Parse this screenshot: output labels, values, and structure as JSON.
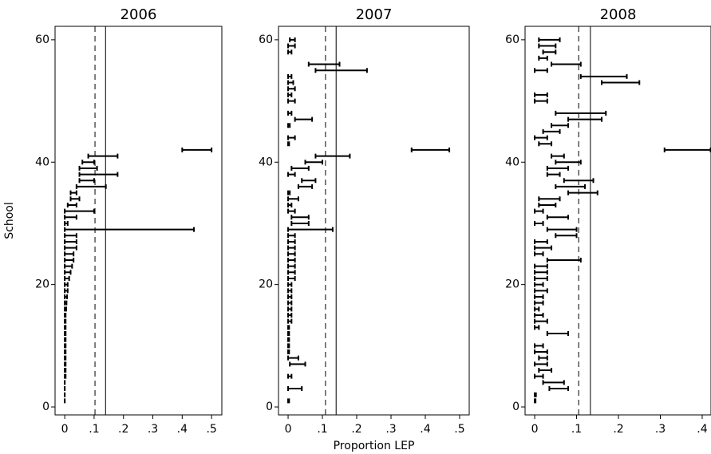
{
  "chart_data": [
    {
      "type": "rcap",
      "title": "2006",
      "y_label": "School",
      "y": [
        1,
        2,
        3,
        4,
        5,
        6,
        7,
        8,
        9,
        10,
        11,
        12,
        13,
        14,
        15,
        16,
        17,
        18,
        19,
        20,
        21,
        22,
        23,
        24,
        25,
        26,
        27,
        28,
        29,
        30,
        31,
        32,
        33,
        34,
        35,
        36,
        37,
        38,
        39,
        40,
        41,
        42,
        43,
        44,
        45,
        46,
        47,
        48,
        49,
        50,
        51,
        52,
        53,
        54,
        55,
        56,
        57,
        58,
        59,
        60
      ],
      "low": [
        0,
        0,
        0,
        0,
        0,
        0,
        0,
        0,
        0,
        0,
        0,
        0,
        0,
        0,
        0,
        0,
        0,
        0,
        0,
        0,
        0,
        0,
        0,
        0,
        0,
        0,
        0,
        0,
        0,
        0,
        0,
        0,
        0.01,
        0.02,
        0.02,
        0.04,
        0.05,
        0.05,
        0.05,
        0.06,
        0.08,
        0.4,
        null,
        null,
        null,
        null,
        null,
        null,
        null,
        null,
        null,
        null,
        null,
        null,
        null,
        null,
        null,
        null,
        null,
        null
      ],
      "high": [
        0,
        0,
        0,
        0,
        0.003,
        0.003,
        0.003,
        0.003,
        0.003,
        0.003,
        0.003,
        0.003,
        0.003,
        0.003,
        0.003,
        0.005,
        0.006,
        0.008,
        0.01,
        0.01,
        0.015,
        0.02,
        0.025,
        0.03,
        0.03,
        0.04,
        0.04,
        0.04,
        0.44,
        0.01,
        0.04,
        0.1,
        0.04,
        0.05,
        0.04,
        0.14,
        0.1,
        0.18,
        0.11,
        0.1,
        0.18,
        0.5,
        null,
        null,
        null,
        null,
        null,
        null,
        null,
        null,
        null,
        null,
        null,
        null,
        null,
        null,
        null,
        null,
        null,
        null
      ],
      "dashed_line": 0.103,
      "solid_line": 0.139,
      "xlim": [
        -0.033,
        0.535
      ],
      "ylim": [
        -1.3,
        62.2
      ],
      "xticks": [
        0,
        {
          "value": 0.1,
          "label": ".1"
        },
        {
          "value": 0.2,
          "label": ".2"
        },
        {
          "value": 0.3,
          "label": ".3"
        },
        {
          "value": 0.4,
          "label": ".4"
        },
        {
          "value": 0.5,
          "label": ".5"
        }
      ],
      "yticks": [
        0,
        20,
        40,
        60
      ],
      "color": "#000000"
    },
    {
      "type": "rcap",
      "title": "2007",
      "x_label": "Proportion LEP",
      "y": [
        1,
        2,
        3,
        4,
        5,
        6,
        7,
        8,
        9,
        10,
        11,
        12,
        13,
        14,
        15,
        16,
        17,
        18,
        19,
        20,
        21,
        22,
        23,
        24,
        25,
        26,
        27,
        28,
        29,
        30,
        31,
        32,
        33,
        34,
        35,
        36,
        37,
        38,
        39,
        40,
        41,
        42,
        43,
        44,
        45,
        46,
        47,
        48,
        49,
        50,
        51,
        52,
        53,
        54,
        55,
        56,
        57,
        58,
        59,
        60
      ],
      "low": [
        0,
        null,
        0,
        null,
        0,
        null,
        0.005,
        0,
        0,
        0,
        0,
        0,
        0,
        0,
        0,
        0,
        0,
        0,
        0,
        0,
        0,
        0,
        0,
        0,
        0,
        0,
        0,
        0,
        0,
        0.01,
        0.01,
        0,
        0,
        0,
        0,
        0.03,
        0.04,
        0,
        0.01,
        0.05,
        0.08,
        0.36,
        0,
        0,
        null,
        0,
        0.02,
        0,
        null,
        0,
        0,
        0,
        0,
        0,
        0.08,
        0.06,
        null,
        0,
        0,
        0.005
      ],
      "high": [
        0.003,
        null,
        0.04,
        null,
        0.01,
        null,
        0.05,
        0.03,
        0.003,
        0.003,
        0.003,
        0.003,
        0.003,
        0.01,
        0.01,
        0.01,
        0.01,
        0.01,
        0.01,
        0.01,
        0.02,
        0.02,
        0.02,
        0.02,
        0.02,
        0.02,
        0.02,
        0.02,
        0.13,
        0.06,
        0.06,
        0.02,
        0.01,
        0.03,
        0.005,
        0.07,
        0.08,
        0.02,
        0.06,
        0.1,
        0.18,
        0.47,
        0.003,
        0.02,
        null,
        0.005,
        0.07,
        0.01,
        null,
        0.02,
        0.01,
        0.02,
        0.015,
        0.01,
        0.23,
        0.15,
        null,
        0.01,
        0.02,
        0.02
      ],
      "dashed_line": 0.109,
      "solid_line": 0.14,
      "xlim": [
        -0.028,
        0.528
      ],
      "ylim": [
        -1.3,
        62.2
      ],
      "xticks": [
        0,
        {
          "value": 0.1,
          "label": ".1"
        },
        {
          "value": 0.2,
          "label": ".2"
        },
        {
          "value": 0.3,
          "label": ".3"
        },
        {
          "value": 0.4,
          "label": ".4"
        },
        {
          "value": 0.5,
          "label": ".5"
        }
      ],
      "yticks": [
        0,
        20,
        40,
        60
      ],
      "color": "#000000"
    },
    {
      "type": "rcap",
      "title": "2008",
      "y": [
        1,
        2,
        3,
        4,
        5,
        6,
        7,
        8,
        9,
        10,
        11,
        12,
        13,
        14,
        15,
        16,
        17,
        18,
        19,
        20,
        21,
        22,
        23,
        24,
        25,
        26,
        27,
        28,
        29,
        30,
        31,
        32,
        33,
        34,
        35,
        36,
        37,
        38,
        39,
        40,
        41,
        42,
        43,
        44,
        45,
        46,
        47,
        48,
        49,
        50,
        51,
        52,
        53,
        54,
        55,
        56,
        57,
        58,
        59,
        60
      ],
      "low": [
        0,
        0,
        0.035,
        0.02,
        0,
        0.01,
        0,
        0.01,
        0,
        0,
        null,
        0.03,
        0,
        0,
        0,
        0,
        0,
        0,
        0,
        0,
        0,
        0,
        0,
        0.03,
        0,
        0,
        0,
        0.05,
        0.03,
        0,
        0.03,
        0,
        0.01,
        0.01,
        0.08,
        0.05,
        0.07,
        0.03,
        0.03,
        0.05,
        0.04,
        0.31,
        0.01,
        0,
        0.02,
        0.04,
        0.08,
        0.05,
        null,
        0,
        0,
        null,
        0.16,
        0.11,
        0,
        0.04,
        0.01,
        0.02,
        0.01,
        0.01
      ],
      "high": [
        0.002,
        0.003,
        0.08,
        0.07,
        0.02,
        0.04,
        0.03,
        0.03,
        0.03,
        0.02,
        null,
        0.08,
        0.01,
        0.03,
        0.02,
        0.01,
        0.02,
        0.02,
        0.03,
        0.02,
        0.03,
        0.03,
        0.03,
        0.11,
        0.02,
        0.04,
        0.03,
        0.1,
        0.1,
        0.02,
        0.08,
        0.02,
        0.05,
        0.06,
        0.15,
        0.12,
        0.14,
        0.06,
        0.08,
        0.11,
        0.07,
        0.42,
        0.04,
        0.03,
        0.06,
        0.08,
        0.16,
        0.17,
        null,
        0.03,
        0.03,
        null,
        0.25,
        0.22,
        0.03,
        0.11,
        0.03,
        0.05,
        0.05,
        0.06
      ],
      "dashed_line": 0.105,
      "solid_line": 0.133,
      "xlim": [
        -0.023,
        0.421
      ],
      "ylim": [
        -1.3,
        62.2
      ],
      "xticks": [
        0,
        {
          "value": 0.1,
          "label": ".1"
        },
        {
          "value": 0.2,
          "label": ".2"
        },
        {
          "value": 0.3,
          "label": ".3"
        },
        {
          "value": 0.4,
          "label": ".4"
        }
      ],
      "yticks": [
        0,
        20,
        40,
        60
      ],
      "color": "#000000"
    }
  ]
}
